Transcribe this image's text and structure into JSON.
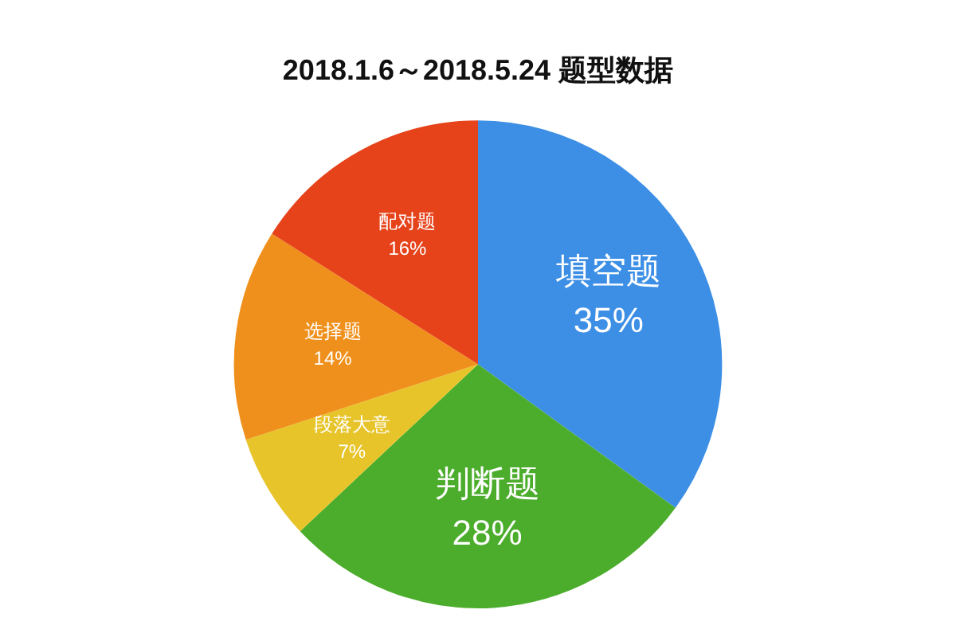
{
  "chart_data": {
    "type": "pie",
    "title": "2018.1.6～2018.5.24 题型数据",
    "categories": [
      "填空题",
      "判断题",
      "段落大意",
      "选择题",
      "配对题"
    ],
    "values": [
      35,
      28,
      7,
      14,
      16
    ],
    "value_labels": [
      "35%",
      "28%",
      "7%",
      "14%",
      "16%"
    ],
    "colors": [
      "#3d8fe6",
      "#4cad2c",
      "#e6c42a",
      "#f0901c",
      "#e6431b"
    ]
  }
}
